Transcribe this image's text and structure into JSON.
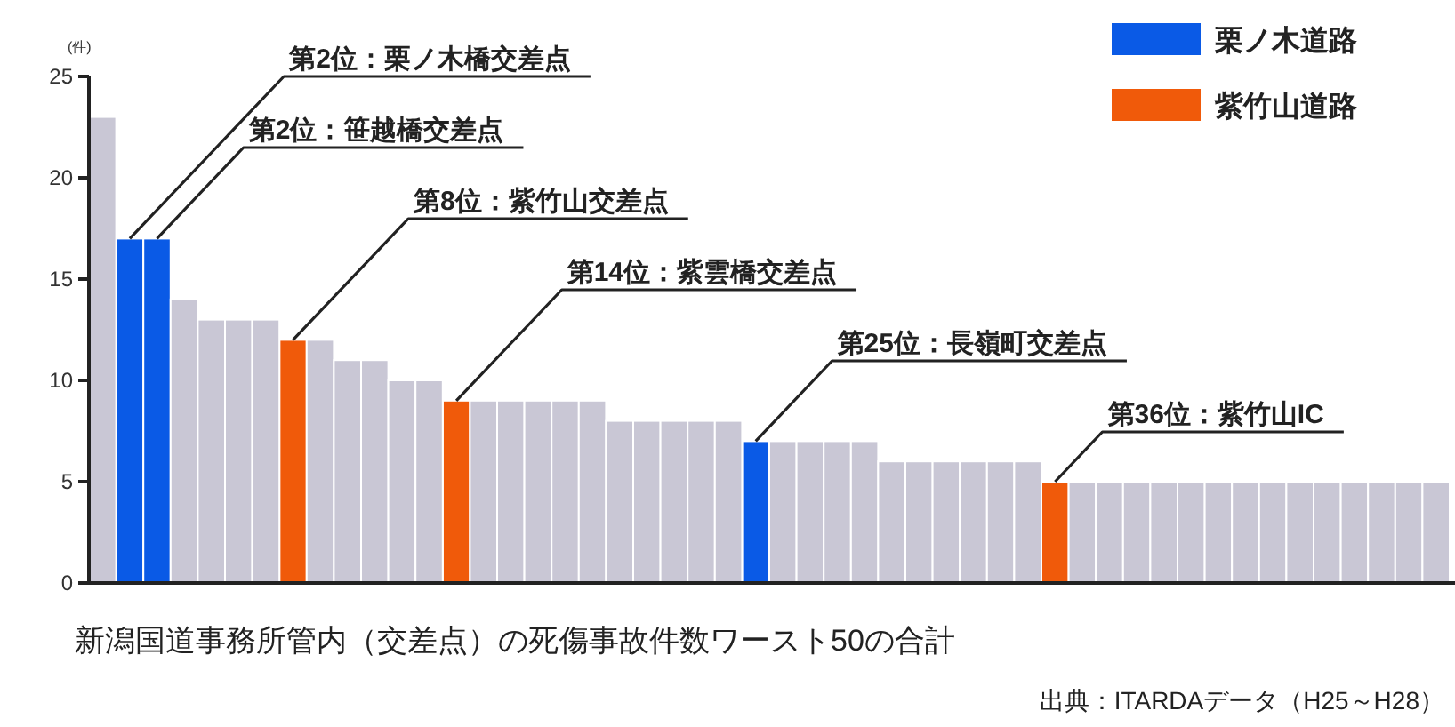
{
  "chart_data": {
    "type": "bar",
    "ylabel": "(件)",
    "xlabel": "新潟国道事務所管内（交差点）の死傷事故件数ワースト50の合計",
    "categories": [
      null,
      null,
      null,
      null,
      null,
      null,
      null,
      null,
      null,
      null,
      null,
      null,
      null,
      null,
      null,
      null,
      null,
      null,
      null,
      null,
      null,
      null,
      null,
      null,
      null,
      null,
      null,
      null,
      null,
      null,
      null,
      null,
      null,
      null,
      null,
      null,
      null,
      null,
      null,
      null,
      null,
      null,
      null,
      null,
      null,
      null,
      null,
      null,
      null,
      null
    ],
    "series": [
      {
        "name": "栗ノ木道路",
        "color": "#0a5ae6",
        "values": [
          null,
          17,
          17,
          null,
          null,
          null,
          null,
          null,
          null,
          null,
          null,
          null,
          null,
          null,
          null,
          null,
          null,
          null,
          null,
          null,
          null,
          null,
          null,
          null,
          7,
          null,
          null,
          null,
          null,
          null,
          null,
          null,
          null,
          null,
          null,
          null,
          null,
          null,
          null,
          null,
          null,
          null,
          null,
          null,
          null,
          null,
          null,
          null,
          null,
          null
        ]
      },
      {
        "name": "紫竹山道路",
        "color": "#f05a0a",
        "values": [
          null,
          null,
          null,
          null,
          null,
          null,
          null,
          12,
          null,
          null,
          null,
          null,
          null,
          9,
          null,
          null,
          null,
          null,
          null,
          null,
          null,
          null,
          null,
          null,
          null,
          null,
          null,
          null,
          null,
          null,
          null,
          null,
          null,
          null,
          null,
          5,
          null,
          null,
          null,
          null,
          null,
          null,
          null,
          null,
          null,
          null,
          null,
          null,
          null,
          null
        ]
      },
      {
        "color": "#c9c7d5",
        "values": [
          23,
          null,
          null,
          14,
          13,
          13,
          13,
          null,
          12,
          11,
          11,
          10,
          10,
          null,
          9,
          9,
          9,
          9,
          9,
          8,
          8,
          8,
          8,
          8,
          null,
          7,
          7,
          7,
          7,
          6,
          6,
          6,
          6,
          6,
          6,
          null,
          5,
          5,
          5,
          5,
          5,
          5,
          5,
          5,
          5,
          5,
          5,
          5,
          5,
          5
        ]
      }
    ],
    "ylim": [
      0,
      25
    ],
    "yticks": [
      0,
      5,
      10,
      15,
      20,
      25
    ],
    "grid": false,
    "legend": "top right",
    "annotations": [
      "第2位：栗ノ木橋交差点",
      "第2位：笹越橋交差点",
      "第8位：紫竹山交差点",
      "第14位：紫雲橋交差点",
      "第25位：長嶺町交差点",
      "第36位：紫竹山IC",
      "出典：ITARDAデータ（H25～H28）"
    ]
  }
}
